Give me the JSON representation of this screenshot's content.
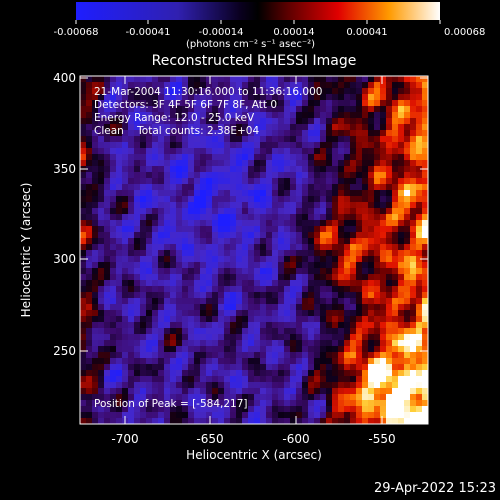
{
  "title": "Reconstructed RHESSI Image",
  "colorbar": {
    "ticks": [
      "-0.00068",
      "-0.00041",
      "-0.00014",
      "0.00014",
      "0.00041",
      "0.00068"
    ],
    "unit": "(photons cm⁻² s⁻¹ asec⁻²)"
  },
  "info": {
    "time": "21-Mar-2004 11:30:16.000 to 11:36:16.000",
    "detectors": "Detectors: 3F 4F 5F 6F 7F 8F, Att 0",
    "energy": "Energy Range: 12.0 - 25.0 keV",
    "clean": "Clean    Total counts: 2.38E+04"
  },
  "peak": "Position of Peak = [-584,217]",
  "axes": {
    "xlabel": "Heliocentric X (arcsec)",
    "ylabel": "Heliocentric Y (arcsec)",
    "xticks": [
      "-700",
      "-650",
      "-600",
      "-550"
    ],
    "yticks": [
      "400",
      "350",
      "300",
      "250"
    ]
  },
  "timestamp": "29-Apr-2022 15:23"
}
